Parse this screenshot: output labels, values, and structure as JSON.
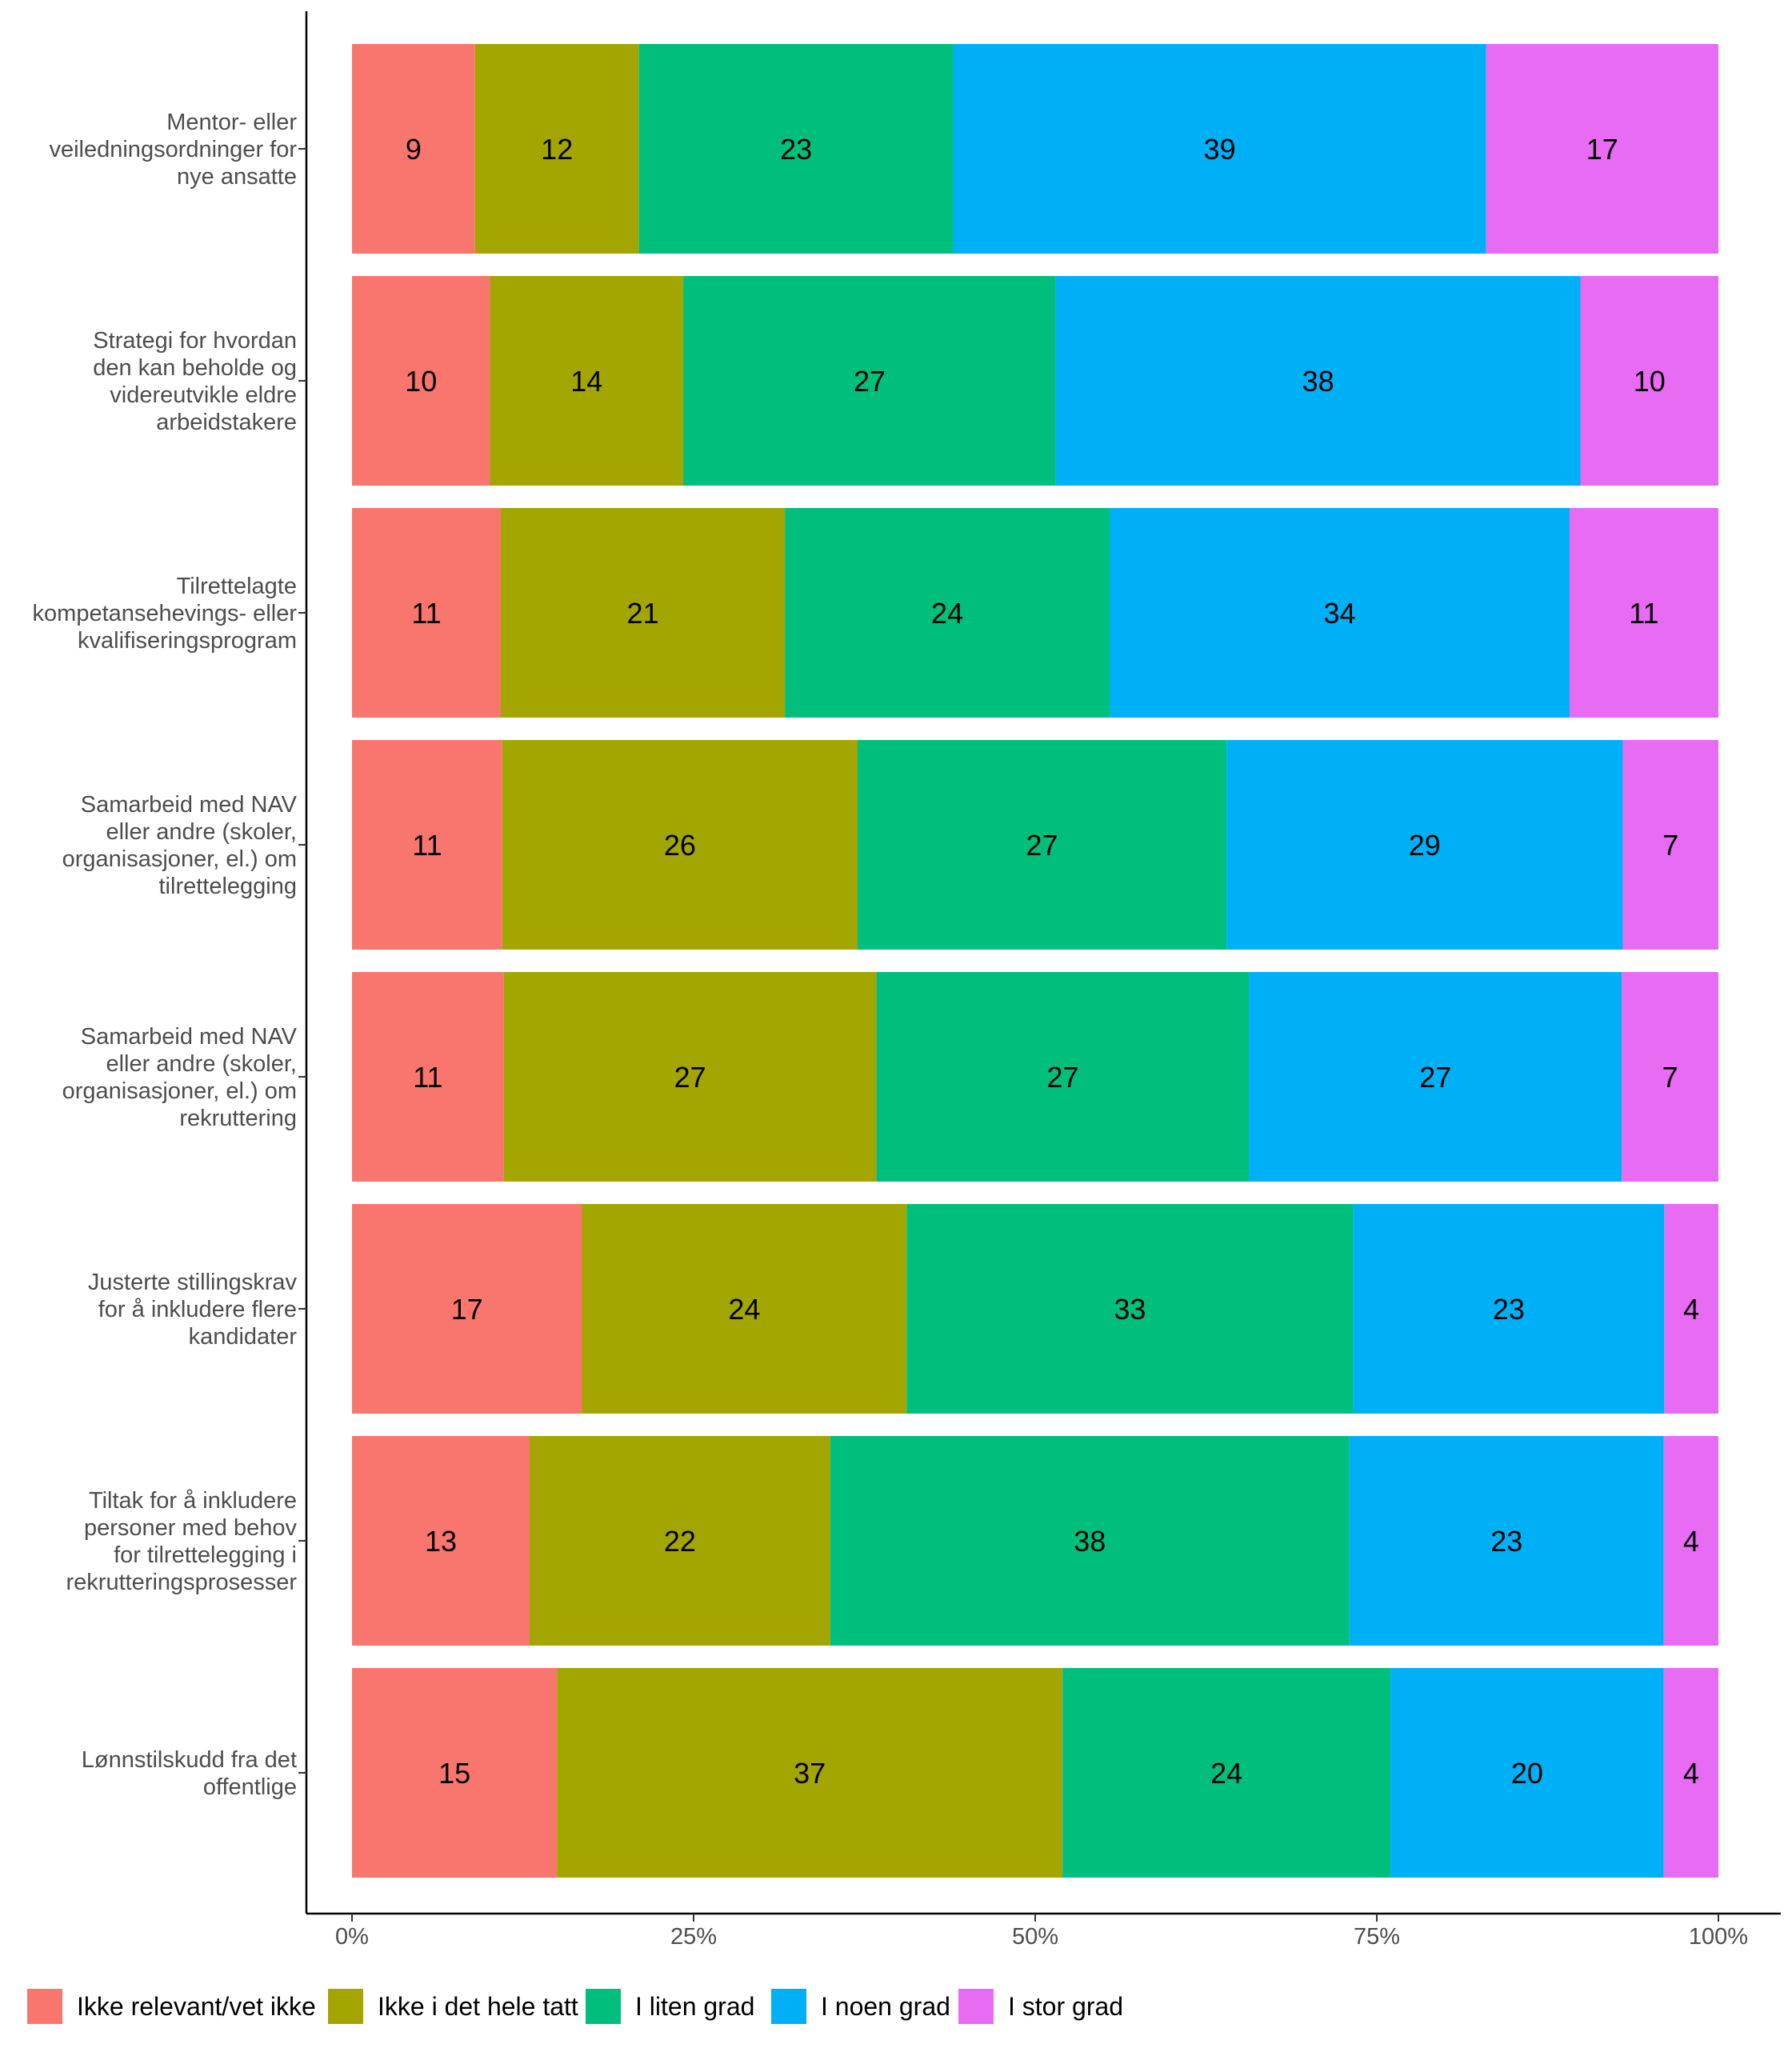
{
  "chart_data": {
    "type": "bar",
    "orientation": "horizontal",
    "stacked": true,
    "normalized_to_percent": true,
    "categories": [
      "Mentor- eller\nveiledningsordninger for\nnye ansatte",
      "Strategi for hvordan\nden kan beholde og\nvidereutvikle eldre\narbeidstakere",
      "Tilrettelagte\nkompetansehevings- eller\nkvalifiseringsprogram",
      "Samarbeid med NAV\neller andre (skoler,\norganisasjoner, el.) om\ntilrettelegging",
      "Samarbeid med NAV\neller andre (skoler,\norganisasjoner, el.) om\nrekruttering",
      "Justerte stillingskrav\nfor å inkludere flere\nkandidater",
      "Tiltak for å inkludere\npersoner med behov\nfor tilrettelegging i\nrekrutteringsprosesser",
      "Lønnstilskudd fra det\noffentlige"
    ],
    "series": [
      {
        "name": "Ikke relevant/vet ikke",
        "color": "#F8766D",
        "values": [
          9,
          10,
          11,
          11,
          11,
          17,
          13,
          15
        ]
      },
      {
        "name": "Ikke i det hele tatt",
        "color": "#A3A500",
        "values": [
          12,
          14,
          21,
          26,
          27,
          24,
          22,
          37
        ]
      },
      {
        "name": "I liten grad",
        "color": "#00BF7D",
        "values": [
          23,
          27,
          24,
          27,
          27,
          33,
          38,
          24
        ]
      },
      {
        "name": "I noen grad",
        "color": "#00B0F6",
        "values": [
          39,
          38,
          34,
          29,
          27,
          23,
          23,
          20
        ]
      },
      {
        "name": "I stor grad",
        "color": "#E76BF3",
        "values": [
          17,
          10,
          11,
          7,
          7,
          4,
          4,
          4
        ]
      }
    ],
    "x_ticks": [
      "0%",
      "25%",
      "50%",
      "75%",
      "100%"
    ],
    "xlim": [
      0,
      100
    ],
    "xlabel": "",
    "ylabel": "",
    "title": "",
    "grid": false,
    "legend_position": "bottom"
  }
}
